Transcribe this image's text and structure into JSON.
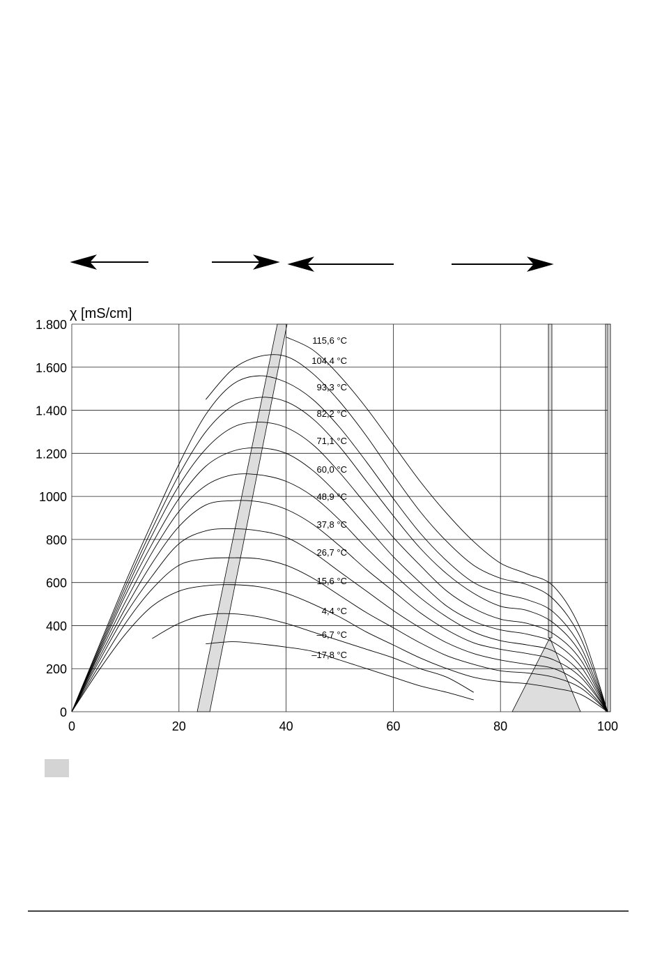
{
  "chart_data": {
    "type": "line",
    "y_label": "χ  [mS/cm]",
    "x": [
      0,
      5,
      10,
      15,
      20,
      25,
      30,
      35,
      40,
      45,
      50,
      55,
      60,
      65,
      70,
      75,
      80,
      85,
      90,
      95,
      100
    ],
    "xlim": [
      0,
      100
    ],
    "xticks": [
      0,
      20,
      40,
      60,
      80,
      100
    ],
    "ylim": [
      0,
      1800
    ],
    "yticks": [
      0,
      200,
      400,
      600,
      800,
      1000,
      {
        "value": 1200,
        "label": "1.200"
      },
      {
        "value": 1400,
        "label": "1.400"
      },
      {
        "value": 1600,
        "label": "1.600"
      },
      {
        "value": 1800,
        "label": "1.800"
      }
    ],
    "grid": true,
    "color": "#000000",
    "series": [
      {
        "name": "115,6 °C",
        "values": [
          null,
          null,
          null,
          null,
          null,
          null,
          null,
          null,
          1740,
          1680,
          1560,
          1410,
          1240,
          1070,
          920,
          790,
          690,
          640,
          580,
          380,
          0
        ]
      },
      {
        "name": "104,4 °C",
        "values": [
          null,
          null,
          null,
          null,
          null,
          1450,
          1590,
          1650,
          1650,
          1570,
          1440,
          1280,
          1100,
          930,
          790,
          680,
          620,
          590,
          520,
          340,
          0
        ]
      },
      {
        "name": "93,3 °C",
        "values": [
          0,
          300,
          600,
          880,
          1150,
          1380,
          1520,
          1560,
          1530,
          1450,
          1320,
          1160,
          990,
          830,
          700,
          600,
          550,
          520,
          460,
          300,
          0
        ]
      },
      {
        "name": "82,2 °C",
        "values": [
          0,
          290,
          580,
          850,
          1100,
          1300,
          1420,
          1460,
          1440,
          1360,
          1230,
          1070,
          910,
          760,
          640,
          550,
          490,
          470,
          410,
          270,
          0
        ]
      },
      {
        "name": "71,1 °C",
        "values": [
          0,
          280,
          560,
          820,
          1050,
          1220,
          1320,
          1345,
          1320,
          1240,
          1110,
          960,
          810,
          680,
          560,
          480,
          430,
          410,
          360,
          240,
          0
        ]
      },
      {
        "name": "60,0 °C",
        "values": [
          0,
          270,
          540,
          780,
          990,
          1140,
          1210,
          1225,
          1200,
          1120,
          1000,
          860,
          720,
          600,
          490,
          420,
          380,
          360,
          320,
          210,
          0
        ]
      },
      {
        "name": "48,9 °C",
        "values": [
          0,
          260,
          510,
          740,
          930,
          1050,
          1100,
          1100,
          1070,
          1000,
          890,
          760,
          640,
          530,
          440,
          370,
          330,
          310,
          280,
          180,
          0
        ]
      },
      {
        "name": "37,8 °C",
        "values": [
          0,
          245,
          480,
          690,
          860,
          960,
          980,
          975,
          940,
          870,
          770,
          660,
          560,
          460,
          380,
          320,
          290,
          270,
          240,
          160,
          0
        ]
      },
      {
        "name": "26,7 °C",
        "values": [
          0,
          230,
          450,
          630,
          780,
          840,
          850,
          840,
          810,
          740,
          650,
          560,
          470,
          390,
          320,
          270,
          240,
          220,
          200,
          130,
          0
        ]
      },
      {
        "name": "15,6 °C",
        "values": [
          0,
          210,
          410,
          570,
          680,
          710,
          715,
          710,
          680,
          620,
          540,
          460,
          390,
          320,
          260,
          220,
          190,
          180,
          160,
          110,
          0
        ]
      },
      {
        "name": "4,4 °C",
        "values": [
          0,
          190,
          360,
          490,
          560,
          585,
          590,
          580,
          550,
          500,
          440,
          370,
          310,
          250,
          200,
          160,
          140,
          130,
          110,
          80,
          0
        ]
      },
      {
        "name": "–6,7 °C",
        "values": [
          null,
          null,
          null,
          340,
          410,
          450,
          455,
          440,
          410,
          370,
          330,
          290,
          250,
          200,
          160,
          90,
          null,
          null,
          null,
          null,
          null
        ]
      },
      {
        "name": "–17,8 °C",
        "values": [
          null,
          null,
          null,
          null,
          null,
          315,
          325,
          315,
          300,
          280,
          240,
          200,
          160,
          120,
          90,
          55,
          null,
          null,
          null,
          null,
          null
        ]
      }
    ]
  }
}
